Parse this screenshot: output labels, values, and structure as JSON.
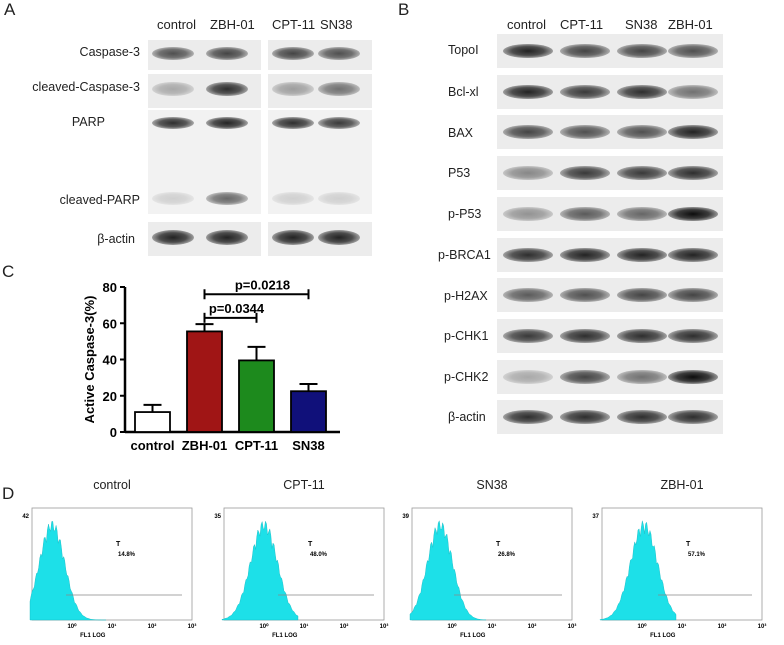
{
  "panels": {
    "a": "A",
    "b": "B",
    "c": "C",
    "d": "D"
  },
  "panel_a": {
    "headers": [
      "control",
      "ZBH-01",
      "CPT-11",
      "SN38"
    ],
    "rows": [
      {
        "name": "Caspase-3",
        "bands": [
          0.7,
          0.75,
          0.75,
          0.7
        ]
      },
      {
        "name": "cleaved-Caspase-3",
        "bands": [
          0.3,
          0.85,
          0.35,
          0.55
        ]
      },
      {
        "name": "PARP",
        "bands": [
          0.85,
          0.9,
          0.85,
          0.8
        ]
      },
      {
        "name": "cleaved-PARP",
        "bands": [
          0.15,
          0.6,
          0.15,
          0.15
        ]
      },
      {
        "name": "β-actin",
        "bands": [
          0.9,
          0.9,
          0.9,
          0.9
        ]
      }
    ]
  },
  "panel_b": {
    "headers": [
      "control",
      "CPT-11",
      "SN38",
      "ZBH-01"
    ],
    "rows": [
      {
        "name": "TopoI",
        "bands": [
          0.9,
          0.75,
          0.75,
          0.7
        ]
      },
      {
        "name": "Bcl-xl",
        "bands": [
          0.9,
          0.8,
          0.85,
          0.55
        ]
      },
      {
        "name": "BAX",
        "bands": [
          0.75,
          0.7,
          0.7,
          0.9
        ]
      },
      {
        "name": "P53",
        "bands": [
          0.45,
          0.8,
          0.8,
          0.85
        ]
      },
      {
        "name": "p-P53",
        "bands": [
          0.4,
          0.65,
          0.6,
          1.0
        ]
      },
      {
        "name": "p-BRCA1",
        "bands": [
          0.85,
          0.9,
          0.9,
          0.9
        ]
      },
      {
        "name": "p-H2AX",
        "bands": [
          0.65,
          0.7,
          0.75,
          0.75
        ]
      },
      {
        "name": "p-CHK1",
        "bands": [
          0.8,
          0.85,
          0.85,
          0.85
        ]
      },
      {
        "name": "p-CHK2",
        "bands": [
          0.3,
          0.75,
          0.55,
          1.0
        ]
      },
      {
        "name": "β-actin",
        "bands": [
          0.85,
          0.85,
          0.85,
          0.85
        ]
      }
    ]
  },
  "chart_data": {
    "type": "bar",
    "ylabel": "Active Caspase-3(%)",
    "ylim": [
      0,
      80
    ],
    "yticks": [
      "0",
      "20",
      "40",
      "60",
      "80"
    ],
    "categories": [
      "control",
      "ZBH-01",
      "CPT-11",
      "SN38"
    ],
    "values": [
      11,
      55.5,
      39.5,
      22.5
    ],
    "errors": [
      4,
      4,
      7.5,
      4
    ],
    "colors": [
      "#ffffff",
      "#a01515",
      "#1d8a1d",
      "#10107a"
    ],
    "annotations": [
      "p=0.0344",
      "p=0.0218"
    ],
    "grid": false
  },
  "panel_d": {
    "axis_label": "FL1 LOG",
    "x_ticks": [
      "10⁰",
      "10¹",
      "10²",
      "10³"
    ],
    "gate_label": "T",
    "histograms": [
      {
        "title": "control",
        "ymax": "42",
        "percent": "14.8%",
        "peak": 0.5,
        "width": 0.75
      },
      {
        "title": "CPT-11",
        "ymax": "35",
        "percent": "48.0%",
        "peak": 1.0,
        "width": 0.8
      },
      {
        "title": "SN38",
        "ymax": "39",
        "percent": "26.8%",
        "peak": 0.7,
        "width": 0.75
      },
      {
        "title": "ZBH-01",
        "ymax": "37",
        "percent": "57.1%",
        "peak": 1.05,
        "width": 0.8
      }
    ],
    "fill_color": "#1de0e8"
  }
}
